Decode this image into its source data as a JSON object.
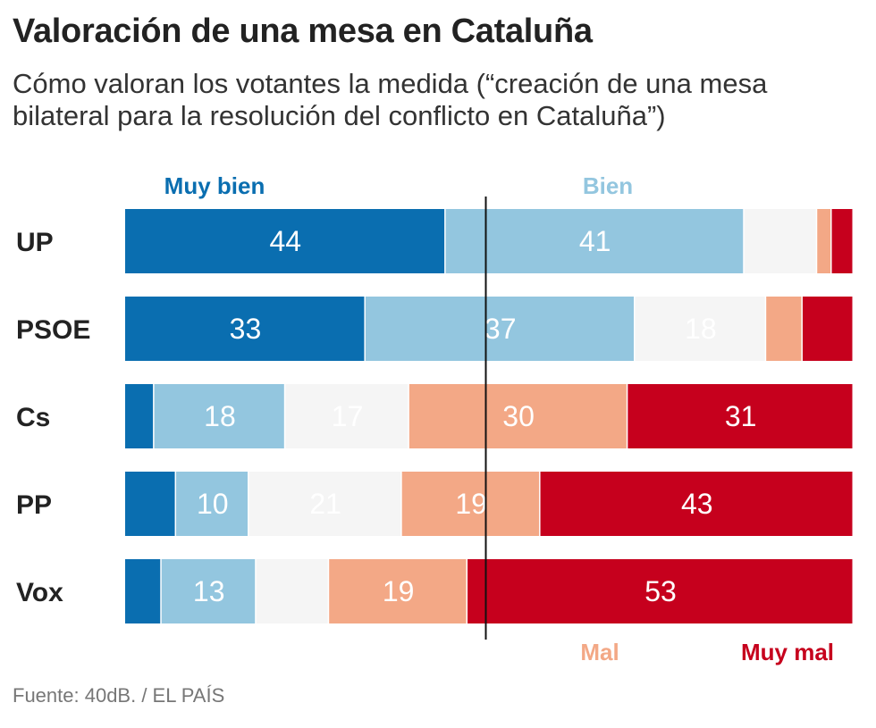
{
  "title": "Valoración de una mesa en Cataluña",
  "subtitle": "Cómo valoran los votantes la medida (“creación de una mesa bilateral para la resolución del conflicto en Cataluña”)",
  "source": "Fuente: 40dB. / EL PAÍS",
  "colors": {
    "muy_bien": "#0a6eb0",
    "bien": "#93c6df",
    "neutral": "#f5f5f5",
    "mal": "#f3a886",
    "muy_mal": "#c6001d",
    "center_line": "#111111",
    "row_label": "#222222"
  },
  "chart_data": {
    "type": "bar",
    "orientation": "horizontal",
    "stacked": true,
    "diverging": true,
    "title": "Valoración de una mesa en Cataluña",
    "categories": [
      "UP",
      "PSOE",
      "Cs",
      "PP",
      "Vox"
    ],
    "series": [
      {
        "name": "Muy bien",
        "key": "muy_bien",
        "values": [
          44,
          33,
          4,
          7,
          5
        ],
        "labels": [
          "44",
          "33",
          "",
          "",
          ""
        ]
      },
      {
        "name": "Bien",
        "key": "bien",
        "values": [
          41,
          37,
          18,
          10,
          13
        ],
        "labels": [
          "41",
          "37",
          "18",
          "10",
          "13"
        ]
      },
      {
        "name": "",
        "key": "neutral",
        "values": [
          10,
          18,
          17,
          21,
          10
        ],
        "labels": [
          "",
          "18",
          "17",
          "21",
          ""
        ]
      },
      {
        "name": "Mal",
        "key": "mal",
        "values": [
          2,
          5,
          30,
          19,
          19
        ],
        "labels": [
          "",
          "",
          "30",
          "19",
          "19"
        ]
      },
      {
        "name": "Muy mal",
        "key": "muy_mal",
        "values": [
          3,
          7,
          31,
          43,
          53
        ],
        "labels": [
          "",
          "",
          "31",
          "43",
          "53"
        ]
      }
    ],
    "legend_top": [
      "Muy bien",
      "Bien"
    ],
    "legend_bottom": [
      "Mal",
      "Muy mal"
    ],
    "center_line": 50,
    "xlim": [
      0,
      100
    ]
  }
}
